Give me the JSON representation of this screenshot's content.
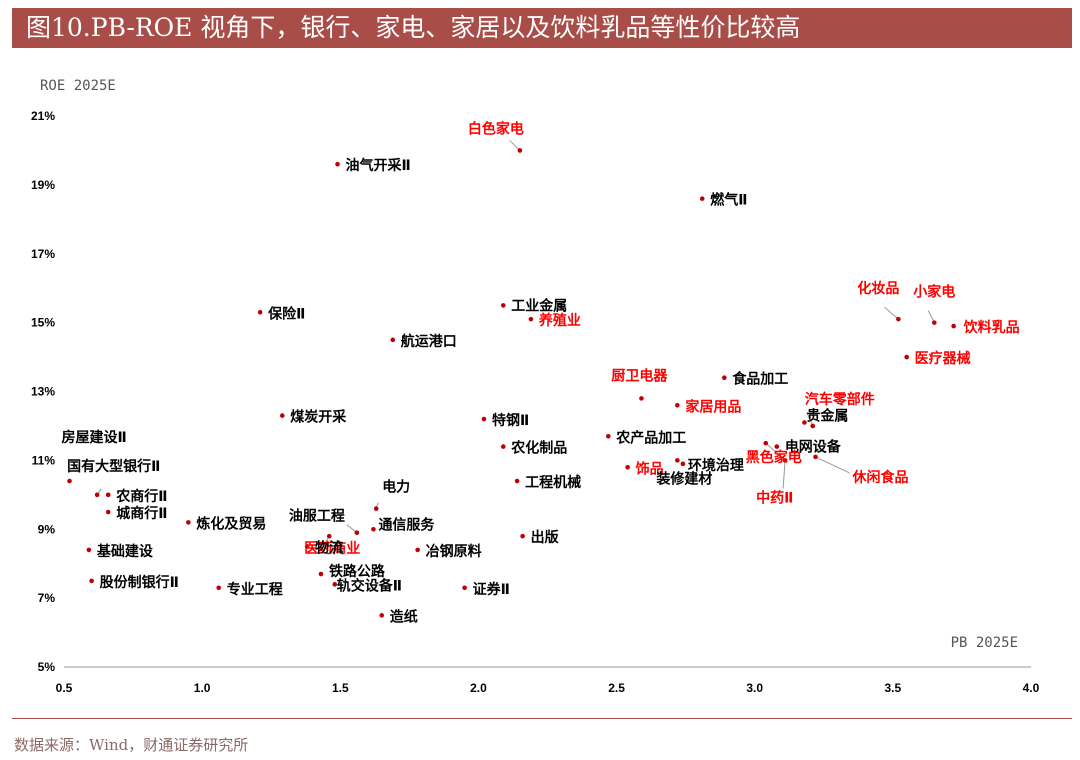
{
  "header": {
    "title": "图10.PB-ROE 视角下，银行、家电、家居以及饮料乳品等性价比较高"
  },
  "footer": {
    "source": "数据来源：Wind，财通证券研究所"
  },
  "colors": {
    "title_bar": "#a84d47",
    "highlight_label": "#ff0000",
    "normal_label": "#000000",
    "point": "#c00000"
  },
  "chart_data": {
    "type": "scatter",
    "xlabel": "PB 2025E",
    "ylabel": "ROE 2025E",
    "xlim": [
      0.5,
      4.0
    ],
    "ylim": [
      5,
      21
    ],
    "x_ticks": [
      "0.5",
      "1.0",
      "1.5",
      "2.0",
      "2.5",
      "3.0",
      "3.5",
      "4.0"
    ],
    "y_ticks": [
      "5%",
      "7%",
      "9%",
      "11%",
      "13%",
      "15%",
      "17%",
      "19%",
      "21%"
    ],
    "grid": false,
    "points": [
      {
        "label": "白色家电",
        "x": 2.15,
        "y": 20.0,
        "highlight": true
      },
      {
        "label": "油气开采Ⅱ",
        "x": 1.49,
        "y": 19.6,
        "highlight": false
      },
      {
        "label": "燃气Ⅱ",
        "x": 2.81,
        "y": 18.6,
        "highlight": false
      },
      {
        "label": "化妆品",
        "x": 3.52,
        "y": 15.1,
        "highlight": true
      },
      {
        "label": "小家电",
        "x": 3.65,
        "y": 15.0,
        "highlight": true
      },
      {
        "label": "饮料乳品",
        "x": 3.72,
        "y": 14.9,
        "highlight": true
      },
      {
        "label": "工业金属",
        "x": 2.09,
        "y": 15.5,
        "highlight": false
      },
      {
        "label": "养殖业",
        "x": 2.19,
        "y": 15.1,
        "highlight": true
      },
      {
        "label": "保险Ⅱ",
        "x": 1.21,
        "y": 15.3,
        "highlight": false
      },
      {
        "label": "航运港口",
        "x": 1.69,
        "y": 14.5,
        "highlight": false
      },
      {
        "label": "医疗器械",
        "x": 3.55,
        "y": 14.0,
        "highlight": true
      },
      {
        "label": "食品加工",
        "x": 2.89,
        "y": 13.4,
        "highlight": false
      },
      {
        "label": "厨卫电器",
        "x": 2.59,
        "y": 12.8,
        "highlight": true
      },
      {
        "label": "家居用品",
        "x": 2.72,
        "y": 12.6,
        "highlight": true
      },
      {
        "label": "汽车零部件",
        "x": 3.21,
        "y": 12.0,
        "highlight": true
      },
      {
        "label": "贵金属",
        "x": 3.18,
        "y": 12.1,
        "highlight": false
      },
      {
        "label": "煤炭开采",
        "x": 1.29,
        "y": 12.3,
        "highlight": false
      },
      {
        "label": "特钢Ⅱ",
        "x": 2.02,
        "y": 12.2,
        "highlight": false
      },
      {
        "label": "房屋建设Ⅱ",
        "x": 0.52,
        "y": 10.4,
        "highlight": false
      },
      {
        "label": "农化制品",
        "x": 2.09,
        "y": 11.4,
        "highlight": false
      },
      {
        "label": "农产品加工",
        "x": 2.47,
        "y": 11.7,
        "highlight": false
      },
      {
        "label": "电网设备",
        "x": 3.08,
        "y": 11.4,
        "highlight": false
      },
      {
        "label": "黑色家电",
        "x": 3.04,
        "y": 11.5,
        "highlight": true
      },
      {
        "label": "环境治理",
        "x": 2.74,
        "y": 10.9,
        "highlight": false
      },
      {
        "label": "饰品",
        "x": 2.54,
        "y": 10.8,
        "highlight": true
      },
      {
        "label": "休闲食品",
        "x": 3.22,
        "y": 11.1,
        "highlight": true
      },
      {
        "label": "装修建材",
        "x": 2.72,
        "y": 11.0,
        "highlight": false
      },
      {
        "label": "中药Ⅱ",
        "x": 3.11,
        "y": 11.0,
        "highlight": true
      },
      {
        "label": "国有大型银行Ⅱ",
        "x": 0.62,
        "y": 10.0,
        "highlight": false
      },
      {
        "label": "农商行Ⅱ",
        "x": 0.66,
        "y": 10.0,
        "highlight": false
      },
      {
        "label": "城商行Ⅱ",
        "x": 0.66,
        "y": 9.5,
        "highlight": false
      },
      {
        "label": "工程机械",
        "x": 2.14,
        "y": 10.4,
        "highlight": false
      },
      {
        "label": "电力",
        "x": 1.63,
        "y": 9.6,
        "highlight": false
      },
      {
        "label": "炼化及贸易",
        "x": 0.95,
        "y": 9.2,
        "highlight": false
      },
      {
        "label": "油服工程",
        "x": 1.56,
        "y": 8.9,
        "highlight": false
      },
      {
        "label": "通信服务",
        "x": 1.62,
        "y": 9.0,
        "highlight": false
      },
      {
        "label": "医药商业",
        "x": 1.46,
        "y": 8.8,
        "highlight": true
      },
      {
        "label": "物流",
        "x": 1.38,
        "y": 8.5,
        "highlight": false
      },
      {
        "label": "基础建设",
        "x": 0.59,
        "y": 8.4,
        "highlight": false
      },
      {
        "label": "出版",
        "x": 2.16,
        "y": 8.8,
        "highlight": false
      },
      {
        "label": "冶钢原料",
        "x": 1.78,
        "y": 8.4,
        "highlight": false
      },
      {
        "label": "铁路公路",
        "x": 1.43,
        "y": 7.7,
        "highlight": false
      },
      {
        "label": "股份制银行Ⅱ",
        "x": 0.6,
        "y": 7.5,
        "highlight": false
      },
      {
        "label": "专业工程",
        "x": 1.06,
        "y": 7.3,
        "highlight": false
      },
      {
        "label": "轨交设备Ⅱ",
        "x": 1.48,
        "y": 7.4,
        "highlight": false
      },
      {
        "label": "证券Ⅱ",
        "x": 1.95,
        "y": 7.3,
        "highlight": false
      },
      {
        "label": "造纸",
        "x": 1.65,
        "y": 6.5,
        "highlight": false
      }
    ]
  }
}
